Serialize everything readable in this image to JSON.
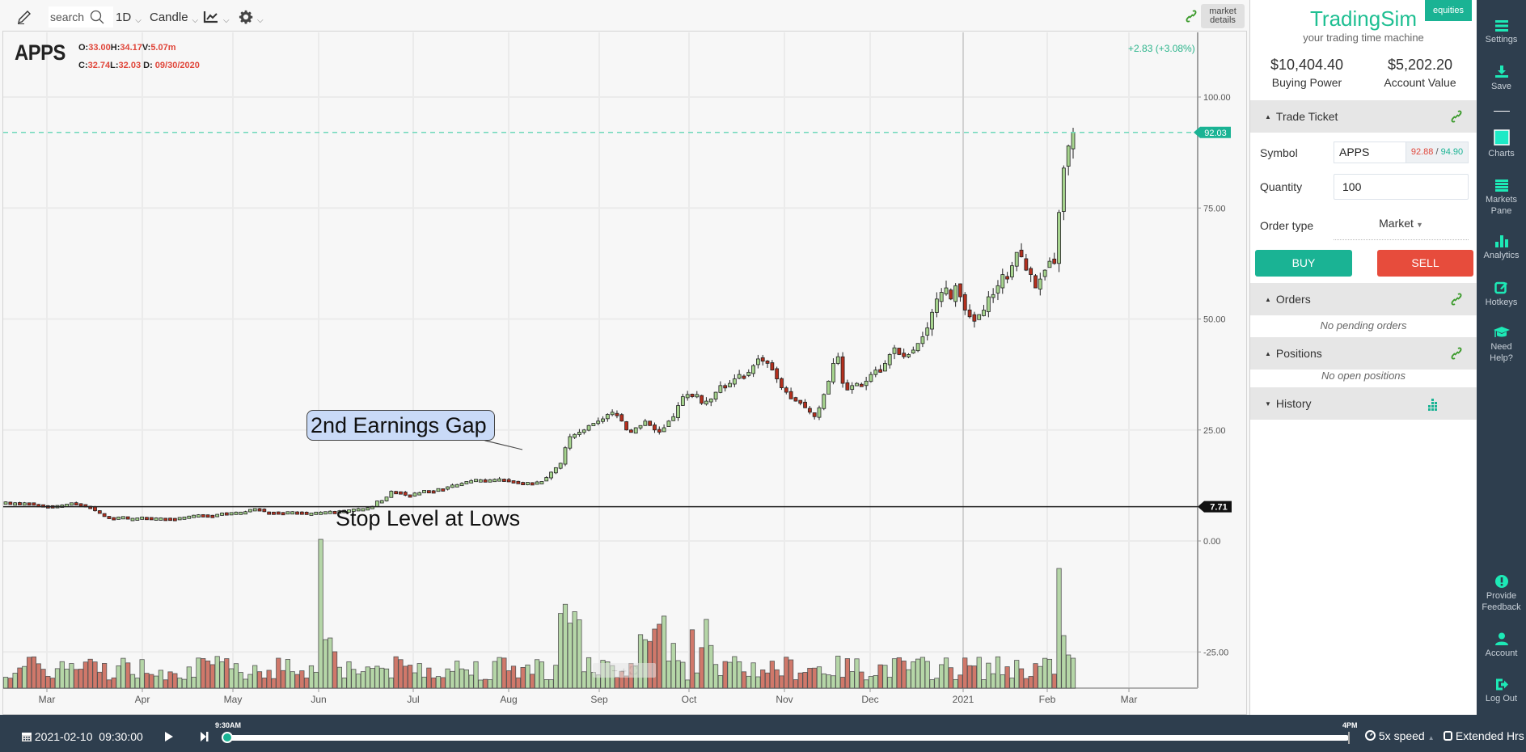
{
  "toolbar": {
    "search_placeholder": "search",
    "interval": "1D",
    "chart_type": "Candle",
    "market_details_line1": "market",
    "market_details_line2": "details"
  },
  "chart_header": {
    "symbol": "APPS",
    "open_label": "O:",
    "open": "33.00",
    "high_label": "H:",
    "high": "34.17",
    "volume_label": "V:",
    "volume": "5.07m",
    "close_label": "C:",
    "close": "32.74",
    "low_label": "L:",
    "low": "32.03",
    "date_label": "D:",
    "date": "09/30/2020",
    "change": "+2.83 (+3.08%)"
  },
  "annotations": {
    "callout": "2nd Earnings Gap",
    "stop_text": "Stop Level at Lows",
    "last_price_tag": "92.03",
    "stop_price_tag": "7.71"
  },
  "colors": {
    "accent": "#1ab394",
    "brand": "#1fbf92",
    "sell": "#e74c3c",
    "up_candle": "#a6d48e",
    "down_candle": "#b5301e",
    "up_volume": "#b5d6a7",
    "down_volume": "#d0786a",
    "nav_bg": "#2e3e4e"
  },
  "chart_data": {
    "type": "candlestick",
    "title": "APPS",
    "interval": "1D",
    "yaxis_ticks": [
      "100.00",
      "75.00",
      "50.00",
      "25.00",
      "0.00",
      "-25.00"
    ],
    "xaxis_ticks": [
      "Mar",
      "Apr",
      "May",
      "Jun",
      "Jul",
      "Aug",
      "Sep",
      "Oct",
      "Nov",
      "Dec",
      "2021",
      "Feb",
      "Mar"
    ],
    "ylim": [
      -30,
      110
    ],
    "last_price": 92.03,
    "stop_level": 7.71,
    "grid": true,
    "closes": [
      8.8,
      8.4,
      8.6,
      8.5,
      8.6,
      8.5,
      8.3,
      8.2,
      8.0,
      7.9,
      7.8,
      8.0,
      8.1,
      8.3,
      8.6,
      8.4,
      8.2,
      7.9,
      7.6,
      6.8,
      6.2,
      5.5,
      5.3,
      5.2,
      5.4,
      5.5,
      5.0,
      5.1,
      5.2,
      5.4,
      5.3,
      5.2,
      5.2,
      5.2,
      5.1,
      5.0,
      5.0,
      5.3,
      5.4,
      5.6,
      5.8,
      5.9,
      5.9,
      5.7,
      5.6,
      6.0,
      6.3,
      6.3,
      6.4,
      6.5,
      6.5,
      6.6,
      7.1,
      7.3,
      7.2,
      6.6,
      6.5,
      6.5,
      6.5,
      6.4,
      6.6,
      6.6,
      6.5,
      6.4,
      6.3,
      6.3,
      6.5,
      6.5,
      6.6,
      6.7,
      6.6,
      6.8,
      6.9,
      7.0,
      7.2,
      7.3,
      7.3,
      7.5,
      7.8,
      9.0,
      9.1,
      9.9,
      11.2,
      11.0,
      10.9,
      10.3,
      10.2,
      10.8,
      10.9,
      11.4,
      11.3,
      11.2,
      11.8,
      11.7,
      12.2,
      12.6,
      12.7,
      13.0,
      13.4,
      13.6,
      13.9,
      13.8,
      13.6,
      13.8,
      13.9,
      14.0,
      13.8,
      13.5,
      13.4,
      13.2,
      13.0,
      13.2,
      13.1,
      13.3,
      13.4,
      14.3,
      15.5,
      16.5,
      17.5,
      21.0,
      23.5,
      24.0,
      24.5,
      25.0,
      26.0,
      26.5,
      27.0,
      27.5,
      28.5,
      29.0,
      28.5,
      27.0,
      25.0,
      24.5,
      25.5,
      26.0,
      27.0,
      26.0,
      25.0,
      24.5,
      25.5,
      27.0,
      28.0,
      30.5,
      32.5,
      33.0,
      32.5,
      33.0,
      31.0,
      31.5,
      32.0,
      33.5,
      35.0,
      34.5,
      35.5,
      36.5,
      37.5,
      37.0,
      38.0,
      39.5,
      41.0,
      40.5,
      40.0,
      38.5,
      36.5,
      34.5,
      33.5,
      32.0,
      31.5,
      31.0,
      30.0,
      29.0,
      28.0,
      30.0,
      33.0,
      36.0,
      40.0,
      41.5,
      35.5,
      34.0,
      35.0,
      35.5,
      35.0,
      36.0,
      37.5,
      38.5,
      38.0,
      40.0,
      42.0,
      43.5,
      42.0,
      41.5,
      42.0,
      43.0,
      44.5,
      46.0,
      48.0,
      51.5,
      54.5,
      56.0,
      57.0,
      54.5,
      57.5,
      55.0,
      52.0,
      50.5,
      49.5,
      51.0,
      52.0,
      55.0,
      55.5,
      57.5,
      60.0,
      59.0,
      62.0,
      65.0,
      64.0,
      61.0,
      60.0,
      57.0,
      59.0,
      61.0,
      63.0,
      62.5,
      74.0,
      84.0,
      89.0,
      92.03
    ],
    "volume_notes": "Volume bars in lower pane; spikes near early June and early February"
  },
  "trade_panel": {
    "brand": "TradingSim",
    "tagline": "your trading time machine",
    "badge": "equities",
    "buying_power_amount": "$10,404.40",
    "buying_power_label": "Buying Power",
    "account_value_amount": "$5,202.20",
    "account_value_label": "Account Value",
    "ticket_title": "Trade Ticket",
    "symbol_label": "Symbol",
    "symbol_value": "APPS",
    "bid": "92.88",
    "ask_sep": " / ",
    "ask": "94.90",
    "quantity_label": "Quantity",
    "quantity_value": "100",
    "order_type_label": "Order type",
    "order_type_value": "Market",
    "buy_label": "BUY",
    "sell_label": "SELL",
    "orders_title": "Orders",
    "orders_empty": "No pending orders",
    "positions_title": "Positions",
    "positions_empty": "No open positions",
    "history_title": "History"
  },
  "nav": {
    "items": [
      {
        "label": "Settings",
        "icon": "menu-icon"
      },
      {
        "label": "Save",
        "icon": "download-icon"
      },
      {
        "label": "Charts",
        "icon": "square-icon"
      },
      {
        "label": "Markets",
        "label2": "Pane",
        "icon": "list-icon"
      },
      {
        "label": "Analytics",
        "icon": "bar-chart-icon"
      },
      {
        "label": "Hotkeys",
        "icon": "edit-icon"
      },
      {
        "label": "Need",
        "label2": "Help?",
        "icon": "graduation-cap-icon"
      },
      {
        "label": "Provide",
        "label2": "Feedback",
        "icon": "exclamation-icon"
      },
      {
        "label": "Account",
        "icon": "user-icon"
      },
      {
        "label": "Log Out",
        "icon": "logout-icon"
      }
    ]
  },
  "playback": {
    "date": "2021-02-10",
    "time": "09:30:00",
    "start_label": "9:30AM",
    "end_label": "4PM",
    "speed": "5x speed",
    "extended_label": "Extended Hrs"
  }
}
